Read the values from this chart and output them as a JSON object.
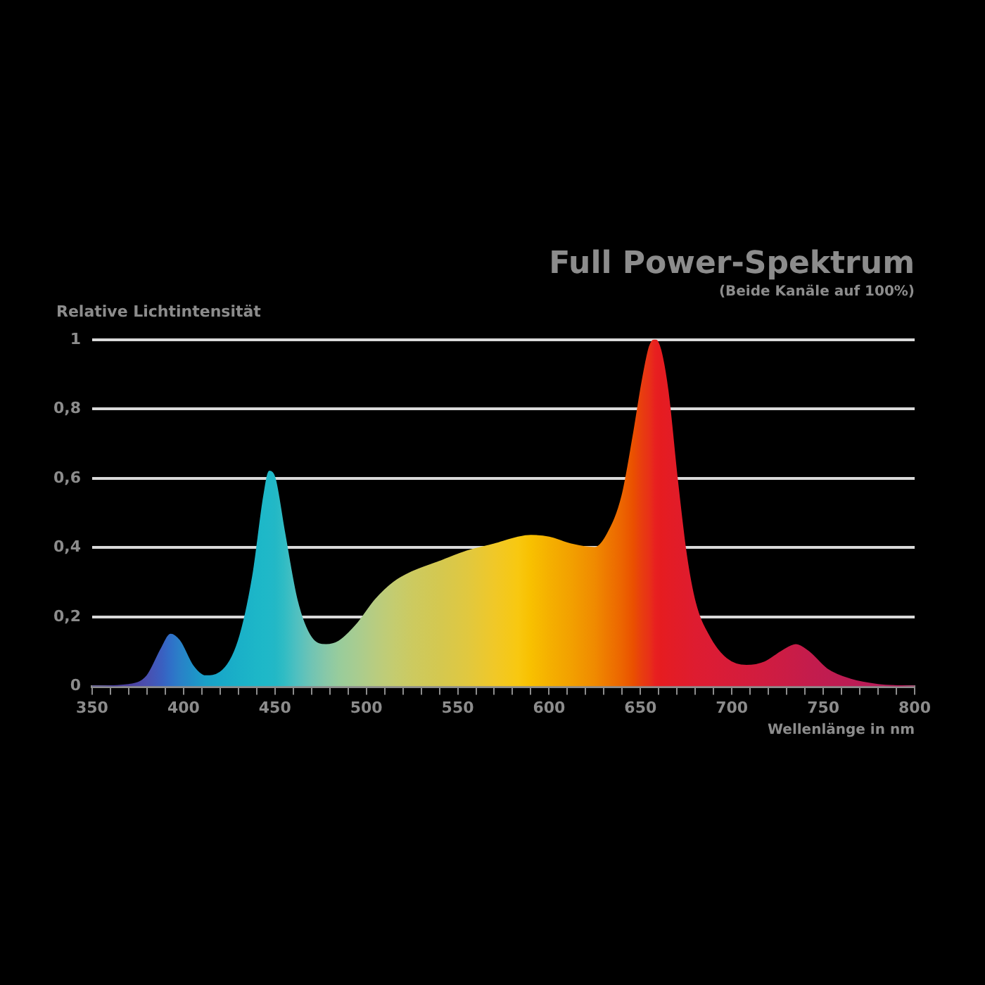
{
  "chart_data": {
    "type": "area",
    "title": "Full Power-Spektrum",
    "subtitle": "(Beide Kanäle auf 100%)",
    "ylabel": "Relative Lichtintensität",
    "xlabel": "Wellenlänge in nm",
    "x": [
      350,
      370,
      380,
      388,
      393,
      398,
      405,
      412,
      420,
      430,
      438,
      444,
      447,
      450,
      455,
      462,
      470,
      478,
      485,
      495,
      505,
      515,
      525,
      540,
      555,
      570,
      583,
      590,
      600,
      612,
      625,
      632,
      640,
      646,
      651,
      655,
      658,
      661,
      665,
      670,
      675,
      680,
      688,
      697,
      708,
      718,
      727,
      735,
      742,
      752,
      765,
      780,
      800
    ],
    "series": [
      {
        "values": [
          0,
          0.005,
          0.03,
          0.11,
          0.15,
          0.13,
          0.06,
          0.03,
          0.04,
          0.13,
          0.32,
          0.55,
          0.62,
          0.6,
          0.45,
          0.25,
          0.14,
          0.12,
          0.13,
          0.18,
          0.25,
          0.3,
          0.33,
          0.36,
          0.39,
          0.41,
          0.43,
          0.435,
          0.43,
          0.41,
          0.4,
          0.44,
          0.55,
          0.72,
          0.88,
          0.98,
          1.0,
          0.97,
          0.85,
          0.6,
          0.38,
          0.24,
          0.14,
          0.08,
          0.06,
          0.07,
          0.1,
          0.12,
          0.1,
          0.05,
          0.02,
          0.005,
          0
        ],
        "colors": [
          "#4b3f9e",
          "#4b3f9e",
          "#4a4fb0",
          "#3a5fc0",
          "#3070c8",
          "#2a80c8",
          "#2090c8",
          "#1aa0c8",
          "#18a8c8",
          "#1ab0c8",
          "#1cb5c8",
          "#1eb8c8",
          "#20b8c8",
          "#22b8c6",
          "#30bcc4",
          "#50c0c0",
          "#70c4b4",
          "#88c8a8",
          "#98cc9c",
          "#a8cc90",
          "#b8cc80",
          "#c4cc70",
          "#ccca60",
          "#d4c850",
          "#e0c840",
          "#f0c828",
          "#f8c810",
          "#f8c000",
          "#f5b000",
          "#f2a000",
          "#f08a00",
          "#ee7800",
          "#ec6400",
          "#ea5000",
          "#e83c10",
          "#e83018",
          "#e82020",
          "#e61c20",
          "#e41c24",
          "#e21c28",
          "#e01c2c",
          "#de1c30",
          "#dc1c34",
          "#d81c38",
          "#d41c3c",
          "#d01c40",
          "#cc1c44",
          "#c81c48",
          "#c41c4c",
          "#c01c50",
          "#bc1c54",
          "#b81c58",
          "#b41c5c"
        ]
      }
    ],
    "xlim": [
      350,
      800
    ],
    "xticks": [
      350,
      {
        "value": 360,
        "label": null
      },
      {
        "value": 370,
        "label": null
      },
      {
        "value": 380,
        "label": null
      },
      {
        "value": 390,
        "label": null
      },
      400,
      {
        "value": 410,
        "label": null
      },
      {
        "value": 420,
        "label": null
      },
      {
        "value": 430,
        "label": null
      },
      {
        "value": 440,
        "label": null
      },
      450,
      {
        "value": 460,
        "label": null
      },
      {
        "value": 470,
        "label": null
      },
      {
        "value": 480,
        "label": null
      },
      {
        "value": 490,
        "label": null
      },
      500,
      {
        "value": 510,
        "label": null
      },
      {
        "value": 520,
        "label": null
      },
      {
        "value": 530,
        "label": null
      },
      {
        "value": 540,
        "label": null
      },
      550,
      {
        "value": 560,
        "label": null
      },
      {
        "value": 570,
        "label": null
      },
      {
        "value": 580,
        "label": null
      },
      {
        "value": 590,
        "label": null
      },
      600,
      {
        "value": 610,
        "label": null
      },
      {
        "value": 620,
        "label": null
      },
      {
        "value": 630,
        "label": null
      },
      {
        "value": 640,
        "label": null
      },
      650,
      {
        "value": 660,
        "label": null
      },
      {
        "value": 670,
        "label": null
      },
      {
        "value": 680,
        "label": null
      },
      {
        "value": 690,
        "label": null
      },
      700,
      {
        "value": 710,
        "label": null
      },
      {
        "value": 720,
        "label": null
      },
      {
        "value": 730,
        "label": null
      },
      {
        "value": 740,
        "label": null
      },
      750,
      {
        "value": 760,
        "label": null
      },
      {
        "value": 770,
        "label": null
      },
      {
        "value": 780,
        "label": null
      },
      {
        "value": 790,
        "label": null
      },
      800
    ],
    "ylim": [
      0,
      1
    ],
    "yticks": [
      0,
      {
        "value": 0.2,
        "label": "0,2"
      },
      {
        "value": 0.4,
        "label": "0,4"
      },
      {
        "value": 0.6,
        "label": "0,6"
      },
      {
        "value": 0.8,
        "label": "0,8"
      },
      1
    ],
    "grid": "y",
    "legend": false
  }
}
